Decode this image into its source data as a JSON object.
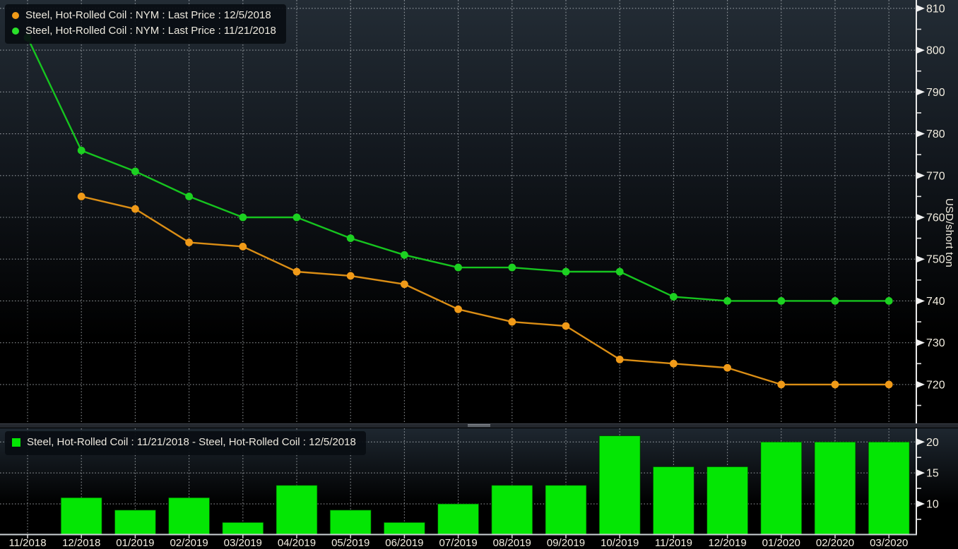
{
  "chart_data": {
    "type": "line+bar",
    "x_categories": [
      "11/2018",
      "12/2018",
      "01/2019",
      "02/2019",
      "03/2019",
      "04/2019",
      "05/2019",
      "06/2019",
      "07/2019",
      "08/2019",
      "09/2019",
      "10/2019",
      "11/2019",
      "12/2019",
      "01/2020",
      "02/2020",
      "03/2020"
    ],
    "top_panel": {
      "y_axis_label": "USD/short ton",
      "y_ticks": [
        810,
        800,
        790,
        780,
        770,
        760,
        750,
        740,
        730,
        720
      ],
      "y_minor_ticks": [
        805,
        795,
        785,
        775,
        765,
        755,
        745,
        735,
        725,
        715
      ],
      "ylim": [
        710.7,
        812
      ],
      "series": [
        {
          "name": "Steel, Hot-Rolled Coil : NYM : Last Price : 12/5/2018",
          "color": "#DB8E15",
          "dot_color": "#F09A18",
          "values": [
            null,
            765,
            762,
            754,
            753,
            747,
            746,
            744,
            738,
            735,
            734,
            726,
            725,
            724,
            720,
            720,
            720
          ]
        },
        {
          "name": "Steel, Hot-Rolled Coil : NYM : Last Price : 11/21/2018",
          "color": "#16C41F",
          "dot_color": "#1CD121",
          "values": [
            803,
            776,
            771,
            765,
            760,
            760,
            755,
            751,
            748,
            748,
            747,
            747,
            741,
            740,
            740,
            740,
            740
          ]
        }
      ]
    },
    "bottom_panel": {
      "legend": "Steel, Hot-Rolled Coil : 11/21/2018 - Steel, Hot-Rolled Coil : 12/5/2018",
      "bar_color": "#04E604",
      "y_ticks": [
        20,
        15,
        10
      ],
      "y_minor_ticks": [
        17.5,
        12.5,
        7.5
      ],
      "ylim": [
        5.1,
        22.2
      ],
      "values": [
        null,
        11,
        9,
        11,
        7,
        13,
        9,
        7,
        10,
        13,
        13,
        21,
        16,
        16,
        20,
        20,
        20
      ]
    },
    "legend_position": "top-left",
    "grid": "dotted"
  },
  "colors": {
    "axis_text": "#F3EEE1",
    "grid_line": "#CDD3D8",
    "axis_line": "#E8E8E8",
    "panel_divider": "#23272D",
    "background_top": "#232C35",
    "background_bottom": "#000000"
  }
}
